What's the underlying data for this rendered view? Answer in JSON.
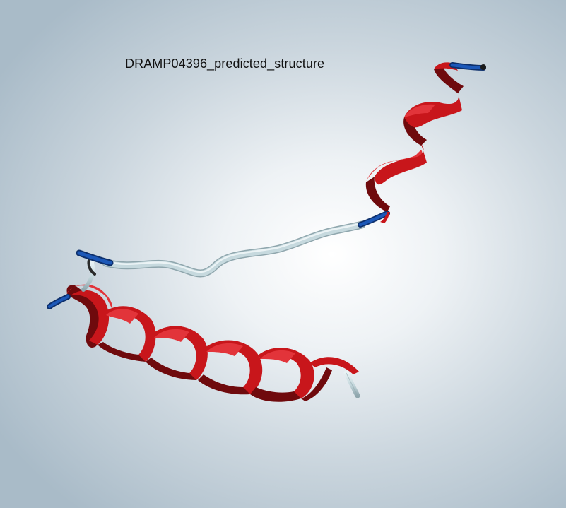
{
  "viewer": {
    "title": "DRAMP04396_predicted_structure"
  },
  "structure": {
    "representation": "ribbon",
    "colors": {
      "helix": "#c8161b",
      "helix_dark": "#6f0a0d",
      "helix_light": "#e2343a",
      "coil": "#c6d9de",
      "coil_dark": "#8fa6ad",
      "terminus": "#1c58b8",
      "terminus_dark": "#0d2f6b"
    }
  }
}
